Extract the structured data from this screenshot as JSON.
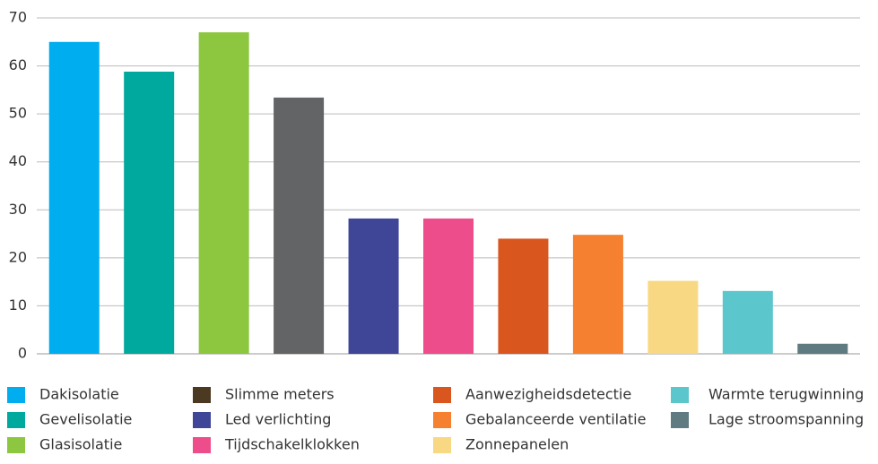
{
  "chart_data": {
    "type": "bar",
    "series": [
      {
        "name": "Dakisolatie",
        "color": "#00aeef",
        "values": [
          65
        ]
      },
      {
        "name": "Gevelisolatie",
        "color": "#00a99d",
        "values": [
          58.8
        ]
      },
      {
        "name": "Glasisolatie",
        "color": "#8dc63f",
        "values": [
          67
        ]
      },
      {
        "name": "Slimme meters",
        "color": "#636466",
        "legend_color": "#4b3a21",
        "values": [
          53.4
        ]
      },
      {
        "name": "Led verlichting",
        "color": "#3f4597",
        "values": [
          28.2
        ]
      },
      {
        "name": "Tijdschakelklokken",
        "color": "#ee4d8b",
        "values": [
          28.2
        ]
      },
      {
        "name": "Aanwezigheidsdetectie",
        "color": "#d9561f",
        "values": [
          24
        ]
      },
      {
        "name": "Gebalanceerde ventilatie",
        "color": "#f58130",
        "values": [
          24.8
        ]
      },
      {
        "name": "Zonnepanelen",
        "color": "#f8d882",
        "values": [
          15.2
        ]
      },
      {
        "name": "Warmte terugwinning",
        "color": "#5bc6cc",
        "values": [
          13.1
        ]
      },
      {
        "name": "Lage stroomspanning",
        "color": "#5f7a80",
        "values": [
          2.1
        ]
      }
    ],
    "ylim": [
      0,
      70
    ],
    "yticks": [
      0,
      10,
      20,
      30,
      40,
      50,
      60,
      70
    ],
    "grid": true
  }
}
